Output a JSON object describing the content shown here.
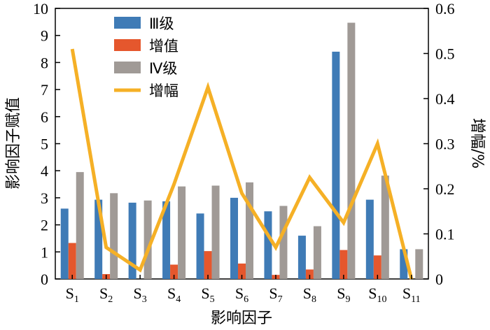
{
  "chart_data": {
    "type": "bar",
    "categories": [
      {
        "base": "S",
        "sub": "1"
      },
      {
        "base": "S",
        "sub": "2"
      },
      {
        "base": "S",
        "sub": "3"
      },
      {
        "base": "S",
        "sub": "4"
      },
      {
        "base": "S",
        "sub": "5"
      },
      {
        "base": "S",
        "sub": "6"
      },
      {
        "base": "S",
        "sub": "7"
      },
      {
        "base": "S",
        "sub": "8"
      },
      {
        "base": "S",
        "sub": "9"
      },
      {
        "base": "S",
        "sub": "10"
      },
      {
        "base": "S",
        "sub": "11"
      }
    ],
    "series": [
      {
        "name": "Ⅲ级",
        "type": "bar",
        "axis": "left",
        "color": "#3f7bb6",
        "values": [
          2.6,
          2.93,
          2.82,
          2.87,
          2.42,
          3.0,
          2.5,
          1.6,
          8.4,
          2.93,
          1.1
        ]
      },
      {
        "name": "增值",
        "type": "bar",
        "axis": "left",
        "color": "#e5572d",
        "values": [
          1.33,
          0.18,
          0.0,
          0.53,
          1.03,
          0.57,
          0.15,
          0.35,
          1.07,
          0.87,
          0.0
        ]
      },
      {
        "name": "Ⅳ级",
        "type": "bar",
        "axis": "left",
        "color": "#a09a96",
        "values": [
          3.95,
          3.17,
          2.9,
          3.42,
          3.45,
          3.57,
          2.7,
          1.95,
          9.47,
          3.82,
          1.1
        ]
      },
      {
        "name": "增幅",
        "type": "line",
        "axis": "right",
        "color": "#f5b026",
        "values": [
          0.51,
          0.07,
          0.02,
          0.21,
          0.425,
          0.19,
          0.07,
          0.225,
          0.125,
          0.3,
          0.0
        ]
      }
    ],
    "xlabel": "影响因子",
    "ylabel": "影响因子赋值",
    "y2label": "增幅/%",
    "ylim": [
      0,
      10
    ],
    "y2lim": [
      0,
      0.6
    ],
    "yticks": [
      "0",
      "1",
      "2",
      "3",
      "4",
      "5",
      "6",
      "7",
      "8",
      "9",
      "10"
    ],
    "y2ticks": [
      "0",
      "0.1",
      "0.2",
      "0.3",
      "0.4",
      "0.5",
      "0.6"
    ],
    "grid": false,
    "legend_position": "top-left"
  }
}
